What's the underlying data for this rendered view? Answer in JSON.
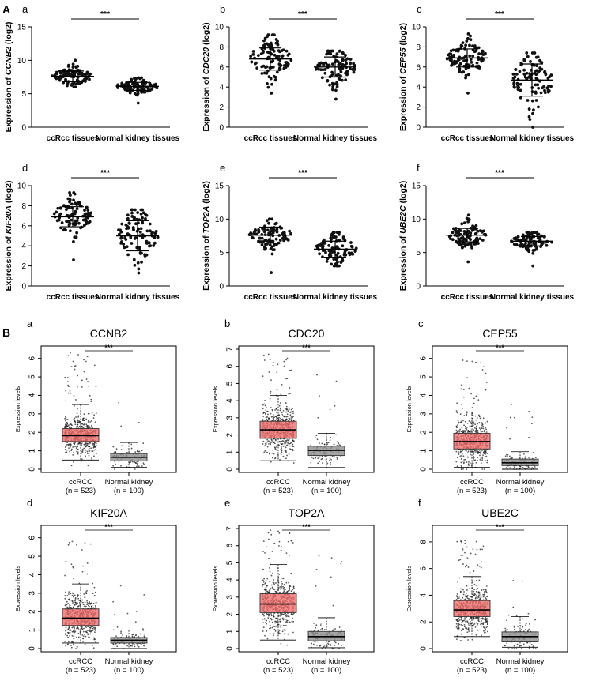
{
  "section_labels": {
    "A": "A",
    "B": "B"
  },
  "panel_a": [
    {
      "letter": "a",
      "gene": "CCNB2",
      "ylim": [
        0,
        15
      ],
      "ticks": [
        0,
        5,
        10,
        15
      ],
      "categories": [
        "ccRcc tissues",
        "Normal kidney tissues"
      ],
      "sig": "***",
      "groups": [
        {
          "mean": 7.6,
          "sd": 0.8,
          "min": 6.0,
          "max": 10.0,
          "n": 100
        },
        {
          "mean": 6.1,
          "sd": 0.6,
          "min": 3.6,
          "max": 7.4,
          "n": 100
        }
      ]
    },
    {
      "letter": "b",
      "gene": "CDC20",
      "ylim": [
        0,
        10
      ],
      "ticks": [
        0,
        2,
        4,
        6,
        8,
        10
      ],
      "categories": [
        "ccRcc tissues",
        "Normal kidney tissues"
      ],
      "sig": "***",
      "groups": [
        {
          "mean": 6.8,
          "sd": 1.1,
          "min": 3.4,
          "max": 9.2,
          "n": 100
        },
        {
          "mean": 6.0,
          "sd": 1.0,
          "min": 2.8,
          "max": 7.6,
          "n": 100
        }
      ]
    },
    {
      "letter": "c",
      "gene": "CEP55",
      "ylim": [
        0,
        10
      ],
      "ticks": [
        0,
        2,
        4,
        6,
        8,
        10
      ],
      "categories": [
        "ccRcc tissues",
        "Normal kidney tissues"
      ],
      "sig": "***",
      "groups": [
        {
          "mean": 6.9,
          "sd": 0.9,
          "min": 3.4,
          "max": 9.3,
          "n": 100
        },
        {
          "mean": 4.7,
          "sd": 1.6,
          "min": 0.0,
          "max": 7.4,
          "n": 100
        }
      ]
    },
    {
      "letter": "d",
      "gene": "KIF20A",
      "ylim": [
        0,
        10
      ],
      "ticks": [
        0,
        2,
        4,
        6,
        8,
        10
      ],
      "categories": [
        "ccRcc tissues",
        "Normal kidney tissues"
      ],
      "sig": "***",
      "groups": [
        {
          "mean": 6.9,
          "sd": 1.0,
          "min": 2.6,
          "max": 9.3,
          "n": 100
        },
        {
          "mean": 5.0,
          "sd": 1.5,
          "min": 1.3,
          "max": 7.6,
          "n": 100
        }
      ]
    },
    {
      "letter": "e",
      "gene": "TOP2A",
      "ylim": [
        0,
        15
      ],
      "ticks": [
        0,
        5,
        10,
        15
      ],
      "categories": [
        "ccRcc tissues",
        "Normal kidney tissues"
      ],
      "sig": "***",
      "groups": [
        {
          "mean": 7.6,
          "sd": 1.2,
          "min": 2.0,
          "max": 10.0,
          "n": 100
        },
        {
          "mean": 5.5,
          "sd": 1.2,
          "min": 3.0,
          "max": 8.0,
          "n": 100
        }
      ]
    },
    {
      "letter": "f",
      "gene": "UBE2C",
      "ylim": [
        0,
        15
      ],
      "ticks": [
        0,
        5,
        10,
        15
      ],
      "categories": [
        "ccRcc tissues",
        "Normal kidney tissues"
      ],
      "sig": "***",
      "groups": [
        {
          "mean": 7.6,
          "sd": 1.0,
          "min": 3.6,
          "max": 10.6,
          "n": 100
        },
        {
          "mean": 6.7,
          "sd": 0.7,
          "min": 3.0,
          "max": 8.0,
          "n": 100
        }
      ]
    }
  ],
  "chart_data": [
    {
      "type": "box",
      "title": "CCNB2",
      "ylabel": "Expression levels",
      "ylim": [
        0,
        6.5
      ],
      "ticks": [
        0,
        1,
        2,
        3,
        4,
        5,
        6
      ],
      "categories": [
        "ccRCC",
        "Normal kidney"
      ],
      "n_labels": [
        "(n = 523)",
        "(n = 100)"
      ],
      "significance": "***",
      "series": [
        {
          "name": "ccRCC",
          "n": 523,
          "q1": 1.5,
          "median": 1.82,
          "q3": 2.2,
          "whisker_low": 0.5,
          "whisker_high": 3.5,
          "max": 6.3,
          "color": "#f26b6b"
        },
        {
          "name": "Normal kidney",
          "n": 100,
          "q1": 0.45,
          "median": 0.65,
          "q3": 0.85,
          "whisker_low": 0.1,
          "whisker_high": 1.45,
          "max": 3.6,
          "color": "#8c8c8c"
        }
      ]
    },
    {
      "type": "box",
      "title": "CDC20",
      "ylabel": "Expression levels",
      "ylim": [
        0,
        7
      ],
      "ticks": [
        0,
        1,
        2,
        3,
        4,
        5,
        6,
        7
      ],
      "categories": [
        "ccRCC",
        "Normal kidney"
      ],
      "n_labels": [
        "(n = 523)",
        "(n = 100)"
      ],
      "significance": "***",
      "series": [
        {
          "name": "ccRCC",
          "n": 523,
          "q1": 1.8,
          "median": 2.3,
          "q3": 2.8,
          "whisker_low": 0.5,
          "whisker_high": 4.3,
          "max": 6.7,
          "color": "#f26b6b"
        },
        {
          "name": "Normal kidney",
          "n": 100,
          "q1": 0.8,
          "median": 1.1,
          "q3": 1.35,
          "whisker_low": 0.1,
          "whisker_high": 2.1,
          "max": 5.5,
          "color": "#8c8c8c"
        }
      ]
    },
    {
      "type": "box",
      "title": "CEP55",
      "ylabel": "Expression levels",
      "ylim": [
        0,
        6.5
      ],
      "ticks": [
        0,
        1,
        2,
        3,
        4,
        5,
        6
      ],
      "categories": [
        "ccRCC",
        "Normal kidney"
      ],
      "n_labels": [
        "(n = 523)",
        "(n = 100)"
      ],
      "significance": "***",
      "series": [
        {
          "name": "ccRCC",
          "n": 523,
          "q1": 1.1,
          "median": 1.5,
          "q3": 1.95,
          "whisker_low": 0.1,
          "whisker_high": 3.1,
          "max": 5.9,
          "color": "#f26b6b"
        },
        {
          "name": "Normal kidney",
          "n": 100,
          "q1": 0.2,
          "median": 0.35,
          "q3": 0.55,
          "whisker_low": 0.0,
          "whisker_high": 0.95,
          "max": 3.5,
          "color": "#8c8c8c"
        }
      ]
    },
    {
      "type": "box",
      "title": "KIF20A",
      "ylabel": "Expression levels",
      "ylim": [
        0,
        6.5
      ],
      "ticks": [
        0,
        1,
        2,
        3,
        4,
        5,
        6
      ],
      "categories": [
        "ccRCC",
        "Normal kidney"
      ],
      "n_labels": [
        "(n = 523)",
        "(n = 100)"
      ],
      "significance": "***",
      "series": [
        {
          "name": "ccRCC",
          "n": 523,
          "q1": 1.25,
          "median": 1.65,
          "q3": 2.15,
          "whisker_low": 0.3,
          "whisker_high": 3.5,
          "max": 5.8,
          "color": "#f26b6b"
        },
        {
          "name": "Normal kidney",
          "n": 100,
          "q1": 0.3,
          "median": 0.45,
          "q3": 0.6,
          "whisker_low": 0.0,
          "whisker_high": 1.0,
          "max": 3.4,
          "color": "#8c8c8c"
        }
      ]
    },
    {
      "type": "box",
      "title": "TOP2A",
      "ylabel": "Expression levels",
      "ylim": [
        0,
        7
      ],
      "ticks": [
        0,
        1,
        2,
        3,
        4,
        5,
        6,
        7
      ],
      "categories": [
        "ccRCC",
        "Normal kidney"
      ],
      "n_labels": [
        "(n = 523)",
        "(n = 100)"
      ],
      "significance": "***",
      "series": [
        {
          "name": "ccRCC",
          "n": 523,
          "q1": 2.1,
          "median": 2.6,
          "q3": 3.2,
          "whisker_low": 0.5,
          "whisker_high": 4.9,
          "max": 6.9,
          "color": "#f26b6b"
        },
        {
          "name": "Normal kidney",
          "n": 100,
          "q1": 0.45,
          "median": 0.7,
          "q3": 1.0,
          "whisker_low": 0.05,
          "whisker_high": 1.8,
          "max": 5.4,
          "color": "#8c8c8c"
        }
      ]
    },
    {
      "type": "box",
      "title": "UBE2C",
      "ylabel": "Expression levels",
      "ylim": [
        0,
        9
      ],
      "ticks": [
        0,
        2,
        4,
        6,
        8
      ],
      "categories": [
        "ccRCC",
        "Normal kidney"
      ],
      "n_labels": [
        "(n = 523)",
        "(n = 100)"
      ],
      "significance": "***",
      "series": [
        {
          "name": "ccRCC",
          "n": 523,
          "q1": 2.4,
          "median": 2.9,
          "q3": 3.6,
          "whisker_low": 0.9,
          "whisker_high": 5.4,
          "max": 8.1,
          "color": "#f26b6b"
        },
        {
          "name": "Normal kidney",
          "n": 100,
          "q1": 0.5,
          "median": 0.9,
          "q3": 1.25,
          "whisker_low": 0.1,
          "whisker_high": 2.4,
          "max": 5.1,
          "color": "#8c8c8c"
        }
      ]
    }
  ]
}
